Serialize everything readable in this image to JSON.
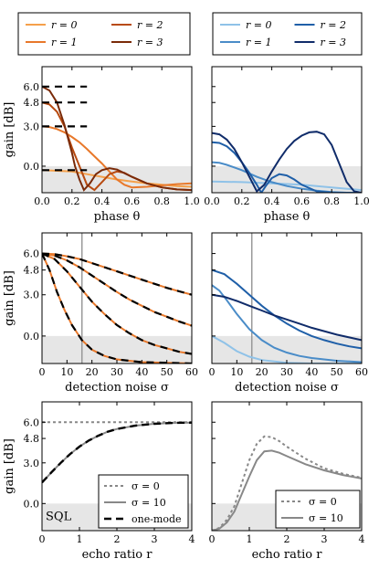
{
  "chart_data": [
    {
      "id": "legend-orange",
      "type": "legend",
      "entries": [
        {
          "label": "r = 0",
          "color": "#f5a04a"
        },
        {
          "label": "r = 1",
          "color": "#e8782a"
        },
        {
          "label": "r = 2",
          "color": "#b84a10"
        },
        {
          "label": "r = 3",
          "color": "#7a2a08"
        }
      ]
    },
    {
      "id": "legend-blue",
      "type": "legend",
      "entries": [
        {
          "label": "r = 0",
          "color": "#8fc2e8"
        },
        {
          "label": "r = 1",
          "color": "#4a8cc8"
        },
        {
          "label": "r = 2",
          "color": "#1f5fa8"
        },
        {
          "label": "r = 3",
          "color": "#102c6a"
        }
      ]
    },
    {
      "id": "phase-orange",
      "type": "line",
      "xlabel": "phase θ",
      "ylabel": "gain [dB]",
      "xlim": [
        0,
        1
      ],
      "ylim": [
        -2.0,
        7.5
      ],
      "xticks": [
        "0.0",
        "0.2",
        "0.4",
        "0.6",
        "0.8",
        "1.0"
      ],
      "yticks": [
        "0.0",
        "3.0",
        "4.8",
        "6.0"
      ],
      "ytick_values": [
        0.0,
        3.0,
        4.8,
        6.0
      ],
      "shade_below": 0,
      "series": [
        {
          "color": "#f5a04a",
          "x": [
            0,
            0.2,
            0.3,
            0.4,
            0.5,
            0.6,
            0.7,
            0.8,
            0.9,
            1.0
          ],
          "y": [
            -0.3,
            -0.4,
            -0.6,
            -0.8,
            -1.0,
            -1.15,
            -1.3,
            -1.4,
            -1.5,
            -1.55
          ]
        },
        {
          "color": "#e8782a",
          "x": [
            0,
            0.05,
            0.1,
            0.15,
            0.2,
            0.25,
            0.3,
            0.35,
            0.4,
            0.45,
            0.5,
            0.55,
            0.6,
            0.7,
            0.8,
            0.9,
            1.0
          ],
          "y": [
            3.0,
            2.95,
            2.8,
            2.55,
            2.2,
            1.8,
            1.3,
            0.75,
            0.2,
            -0.4,
            -1.0,
            -1.4,
            -1.6,
            -1.55,
            -1.45,
            -1.35,
            -1.3
          ]
        },
        {
          "color": "#b84a10",
          "x": [
            0,
            0.05,
            0.1,
            0.15,
            0.2,
            0.25,
            0.3,
            0.35,
            0.4,
            0.45,
            0.5,
            0.55,
            0.6,
            0.7,
            0.8,
            0.9,
            1.0
          ],
          "y": [
            4.8,
            4.65,
            4.1,
            3.0,
            1.4,
            0.0,
            -1.4,
            -1.8,
            -1.2,
            -0.6,
            -0.4,
            -0.5,
            -0.8,
            -1.3,
            -1.6,
            -1.75,
            -1.8
          ]
        },
        {
          "color": "#7a2a08",
          "x": [
            0,
            0.05,
            0.1,
            0.15,
            0.2,
            0.22,
            0.25,
            0.28,
            0.32,
            0.36,
            0.4,
            0.45,
            0.5,
            0.6,
            0.7,
            0.8,
            0.9,
            1.0
          ],
          "y": [
            6.0,
            5.7,
            4.8,
            3.1,
            1.0,
            0.0,
            -1.0,
            -1.8,
            -1.3,
            -0.6,
            -0.3,
            -0.15,
            -0.25,
            -0.8,
            -1.3,
            -1.6,
            -1.75,
            -1.8
          ]
        }
      ],
      "dashed": [
        {
          "x": [
            0,
            0.3
          ],
          "y": [
            6.0,
            6.0
          ]
        },
        {
          "x": [
            0,
            0.3
          ],
          "y": [
            4.8,
            4.8
          ]
        },
        {
          "x": [
            0,
            0.3
          ],
          "y": [
            3.0,
            3.0
          ]
        },
        {
          "x": [
            0,
            0.3
          ],
          "y": [
            -0.3,
            -0.3
          ]
        }
      ]
    },
    {
      "id": "phase-blue",
      "type": "line",
      "xlabel": "phase θ",
      "xlim": [
        0,
        1
      ],
      "ylim": [
        -2.0,
        7.5
      ],
      "xticks": [
        "0.0",
        "0.2",
        "0.4",
        "0.6",
        "0.8",
        "1.0"
      ],
      "shade_below": 0,
      "series": [
        {
          "color": "#8fc2e8",
          "x": [
            0,
            0.2,
            0.4,
            0.6,
            0.8,
            1.0
          ],
          "y": [
            -1.15,
            -1.2,
            -1.3,
            -1.4,
            -1.6,
            -1.8
          ]
        },
        {
          "color": "#4a8cc8",
          "x": [
            0,
            0.05,
            0.1,
            0.2,
            0.3,
            0.4,
            0.5,
            0.6,
            0.7,
            0.8,
            0.9,
            1.0
          ],
          "y": [
            0.3,
            0.25,
            0.1,
            -0.3,
            -0.8,
            -1.2,
            -1.5,
            -1.7,
            -1.85,
            -1.95,
            -2.0,
            -2.0
          ]
        },
        {
          "color": "#1f5fa8",
          "x": [
            0,
            0.05,
            0.1,
            0.15,
            0.2,
            0.25,
            0.3,
            0.33,
            0.36,
            0.4,
            0.45,
            0.5,
            0.55,
            0.6,
            0.7,
            0.8,
            0.9,
            1.0
          ],
          "y": [
            1.8,
            1.75,
            1.5,
            1.0,
            0.3,
            -0.5,
            -1.4,
            -2.0,
            -1.5,
            -0.9,
            -0.6,
            -0.7,
            -1.0,
            -1.4,
            -1.9,
            -2.0,
            -2.0,
            -2.0
          ]
        },
        {
          "color": "#102c6a",
          "x": [
            0,
            0.05,
            0.1,
            0.15,
            0.2,
            0.25,
            0.3,
            0.35,
            0.4,
            0.45,
            0.5,
            0.55,
            0.6,
            0.65,
            0.7,
            0.75,
            0.8,
            0.85,
            0.9,
            0.95,
            1.0
          ],
          "y": [
            2.5,
            2.4,
            2.0,
            1.3,
            0.3,
            -0.8,
            -1.9,
            -1.4,
            -0.4,
            0.5,
            1.3,
            1.9,
            2.3,
            2.55,
            2.6,
            2.4,
            1.6,
            0.2,
            -1.2,
            -1.9,
            -2.0
          ]
        }
      ]
    },
    {
      "id": "noise-orange",
      "type": "line",
      "xlabel": "detection noise σ",
      "ylabel": "gain [dB]",
      "xlim": [
        0,
        60
      ],
      "ylim": [
        -2.0,
        7.5
      ],
      "xticks": [
        "0",
        "10",
        "20",
        "30",
        "40",
        "50",
        "60"
      ],
      "yticks": [
        "0.0",
        "3.0",
        "4.8",
        "6.0"
      ],
      "ytick_values": [
        0.0,
        3.0,
        4.8,
        6.0
      ],
      "shade_below": 0,
      "vline": 16,
      "series": [
        {
          "color": "#e8782a",
          "x": [
            0,
            3,
            6,
            9,
            12,
            16,
            20,
            25,
            30,
            40,
            50,
            60
          ],
          "y": [
            6.0,
            4.8,
            3.2,
            1.9,
            0.8,
            -0.3,
            -1.0,
            -1.45,
            -1.7,
            -1.9,
            -1.95,
            -2.0
          ]
        },
        {
          "color": "#e8782a",
          "x": [
            0,
            5,
            10,
            15,
            20,
            25,
            30,
            35,
            40,
            45,
            50,
            55,
            60
          ],
          "y": [
            6.0,
            5.6,
            4.7,
            3.6,
            2.5,
            1.6,
            0.8,
            0.2,
            -0.3,
            -0.65,
            -0.9,
            -1.15,
            -1.3
          ]
        },
        {
          "color": "#e8782a",
          "x": [
            0,
            5,
            10,
            15,
            20,
            25,
            30,
            35,
            40,
            45,
            50,
            55,
            60
          ],
          "y": [
            6.0,
            5.85,
            5.5,
            5.0,
            4.4,
            3.8,
            3.2,
            2.65,
            2.2,
            1.75,
            1.4,
            1.05,
            0.75
          ]
        },
        {
          "color": "#e8782a",
          "x": [
            0,
            5,
            10,
            15,
            20,
            25,
            30,
            35,
            40,
            45,
            50,
            55,
            60
          ],
          "y": [
            6.0,
            5.95,
            5.8,
            5.6,
            5.3,
            5.0,
            4.7,
            4.4,
            4.1,
            3.8,
            3.5,
            3.25,
            3.0
          ]
        }
      ],
      "dashed": [
        {
          "x": [
            0,
            3,
            6,
            9,
            12,
            16,
            20,
            25,
            30,
            40,
            50,
            60
          ],
          "y": [
            6.0,
            4.8,
            3.2,
            1.9,
            0.8,
            -0.3,
            -1.0,
            -1.45,
            -1.7,
            -1.9,
            -1.95,
            -2.0
          ]
        },
        {
          "x": [
            0,
            5,
            10,
            15,
            20,
            25,
            30,
            35,
            40,
            45,
            50,
            55,
            60
          ],
          "y": [
            6.0,
            5.6,
            4.7,
            3.6,
            2.5,
            1.6,
            0.8,
            0.2,
            -0.3,
            -0.65,
            -0.9,
            -1.15,
            -1.3
          ]
        },
        {
          "x": [
            0,
            5,
            10,
            15,
            20,
            25,
            30,
            35,
            40,
            45,
            50,
            55,
            60
          ],
          "y": [
            6.0,
            5.85,
            5.5,
            5.0,
            4.4,
            3.8,
            3.2,
            2.65,
            2.2,
            1.75,
            1.4,
            1.05,
            0.75
          ]
        },
        {
          "x": [
            0,
            5,
            10,
            15,
            20,
            25,
            30,
            35,
            40,
            45,
            50,
            55,
            60
          ],
          "y": [
            6.0,
            5.95,
            5.8,
            5.6,
            5.3,
            5.0,
            4.7,
            4.4,
            4.1,
            3.8,
            3.5,
            3.25,
            3.0
          ]
        }
      ]
    },
    {
      "id": "noise-blue",
      "type": "line",
      "xlabel": "detection noise σ",
      "xlim": [
        0,
        60
      ],
      "ylim": [
        -2.0,
        7.5
      ],
      "xticks": [
        "0",
        "10",
        "20",
        "30",
        "40",
        "50",
        "60"
      ],
      "shade_below": 0,
      "vline": 16,
      "series": [
        {
          "color": "#8fc2e8",
          "x": [
            0,
            5,
            10,
            15,
            20,
            30,
            40,
            50,
            60
          ],
          "y": [
            0.0,
            -0.5,
            -1.1,
            -1.5,
            -1.75,
            -1.95,
            -2.0,
            -2.0,
            -2.0
          ]
        },
        {
          "color": "#4a8cc8",
          "x": [
            0,
            3,
            6,
            10,
            15,
            20,
            25,
            30,
            35,
            40,
            50,
            60
          ],
          "y": [
            3.7,
            3.3,
            2.6,
            1.6,
            0.5,
            -0.3,
            -0.85,
            -1.2,
            -1.45,
            -1.6,
            -1.8,
            -1.9
          ]
        },
        {
          "color": "#1f5fa8",
          "x": [
            0,
            5,
            10,
            15,
            20,
            25,
            30,
            35,
            40,
            45,
            50,
            55,
            60
          ],
          "y": [
            4.8,
            4.5,
            3.8,
            3.0,
            2.2,
            1.5,
            0.9,
            0.4,
            0.0,
            -0.3,
            -0.55,
            -0.75,
            -0.9
          ]
        },
        {
          "color": "#102c6a",
          "x": [
            0,
            5,
            10,
            15,
            20,
            25,
            30,
            35,
            40,
            45,
            50,
            55,
            60
          ],
          "y": [
            3.0,
            2.85,
            2.55,
            2.2,
            1.85,
            1.5,
            1.2,
            0.9,
            0.6,
            0.35,
            0.1,
            -0.1,
            -0.3
          ]
        }
      ]
    },
    {
      "id": "echo-black",
      "type": "line",
      "xlabel": "echo ratio r",
      "ylabel": "gain [dB]",
      "xlim": [
        0,
        4
      ],
      "ylim": [
        -2.0,
        7.5
      ],
      "xticks": [
        "0",
        "1",
        "2",
        "3",
        "4"
      ],
      "yticks": [
        "0.0",
        "3.0",
        "4.8",
        "6.0"
      ],
      "ytick_values": [
        0.0,
        3.0,
        4.8,
        6.0
      ],
      "shade_below": 0,
      "shade_label": "SQL",
      "legend": [
        {
          "label": "σ = 0",
          "style": "dotted"
        },
        {
          "label": "σ = 10",
          "style": "solid"
        },
        {
          "label": "one-mode",
          "style": "dashed"
        }
      ],
      "series": [
        {
          "name": "σ = 0",
          "style": "dotted",
          "color": "#888888",
          "x": [
            0,
            1,
            2,
            3,
            4
          ],
          "y": [
            6.0,
            6.0,
            6.0,
            6.0,
            6.0
          ]
        },
        {
          "name": "σ = 10",
          "style": "solid",
          "color": "#888888",
          "x": [
            0,
            0.25,
            0.5,
            0.75,
            1.0,
            1.25,
            1.5,
            1.75,
            2.0,
            2.5,
            3.0,
            3.5,
            4.0
          ],
          "y": [
            1.55,
            2.3,
            3.0,
            3.65,
            4.2,
            4.65,
            5.0,
            5.3,
            5.5,
            5.75,
            5.88,
            5.95,
            5.97
          ]
        },
        {
          "name": "one-mode",
          "style": "dashed",
          "color": "#000000",
          "x": [
            0,
            0.25,
            0.5,
            0.75,
            1.0,
            1.25,
            1.5,
            1.75,
            2.0,
            2.5,
            3.0,
            3.5,
            4.0
          ],
          "y": [
            1.55,
            2.3,
            3.0,
            3.65,
            4.2,
            4.65,
            5.0,
            5.3,
            5.5,
            5.75,
            5.88,
            5.95,
            5.97
          ]
        }
      ]
    },
    {
      "id": "echo-gray",
      "type": "line",
      "xlabel": "echo ratio r",
      "xlim": [
        0,
        4
      ],
      "ylim": [
        -2.0,
        7.5
      ],
      "xticks": [
        "0",
        "1",
        "2",
        "3",
        "4"
      ],
      "shade_below": 0,
      "legend": [
        {
          "label": "σ = 0",
          "style": "dotted"
        },
        {
          "label": "σ = 10",
          "style": "solid"
        }
      ],
      "series": [
        {
          "name": "σ = 0",
          "style": "dotted",
          "color": "#888888",
          "x": [
            0,
            0.2,
            0.4,
            0.6,
            0.8,
            1.0,
            1.2,
            1.4,
            1.6,
            1.8,
            2.0,
            2.5,
            3.0,
            3.5,
            4.0
          ],
          "y": [
            -2.0,
            -1.8,
            -1.2,
            -0.2,
            1.5,
            3.2,
            4.4,
            4.95,
            4.9,
            4.6,
            4.2,
            3.3,
            2.6,
            2.2,
            1.9
          ]
        },
        {
          "name": "σ = 10",
          "style": "solid",
          "color": "#888888",
          "x": [
            0,
            0.2,
            0.4,
            0.6,
            0.8,
            1.0,
            1.2,
            1.4,
            1.6,
            1.8,
            2.0,
            2.5,
            3.0,
            3.5,
            4.0
          ],
          "y": [
            -2.0,
            -1.85,
            -1.4,
            -0.6,
            0.7,
            2.0,
            3.2,
            3.85,
            3.9,
            3.75,
            3.5,
            2.9,
            2.45,
            2.1,
            1.85
          ]
        }
      ]
    }
  ]
}
